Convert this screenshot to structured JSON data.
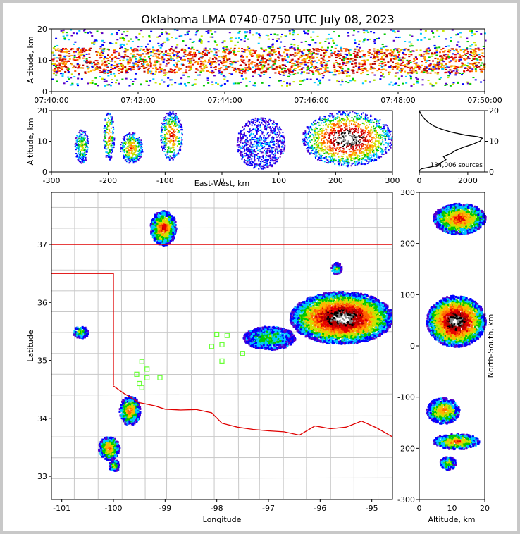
{
  "title": "Oklahoma LMA 0740-0750 UTC July 08, 2023",
  "colors": {
    "density": [
      "#5a00c8",
      "#0000ff",
      "#00c8ff",
      "#00c800",
      "#c8e600",
      "#ffb400",
      "#ff6400",
      "#e60000",
      "#b40000",
      "#000000",
      "#808080",
      "#ffffff"
    ],
    "state_border": "#e00000",
    "county_border": "#c8c8c8",
    "station": "#66ff33"
  },
  "chart_data": [
    {
      "id": "time-height",
      "type": "heatmap",
      "ylabel": "Altitude, km",
      "xlim": [
        "07:40:00",
        "07:50:00"
      ],
      "ylim": [
        0,
        20
      ],
      "xticks": [
        "07:40:00",
        "07:42:00",
        "07:44:00",
        "07:46:00",
        "07:48:00",
        "07:50:00"
      ],
      "yticks": [
        0,
        10,
        20
      ],
      "band": {
        "altitude_km": [
          2,
          20
        ],
        "core_km": [
          6,
          14
        ]
      }
    },
    {
      "id": "ew-altitude",
      "type": "heatmap",
      "xlabel": "East-West, km",
      "ylabel": "Altitude, km",
      "xlim": [
        -300,
        300
      ],
      "ylim": [
        0,
        20
      ],
      "xticks": [
        -300,
        -200,
        -100,
        0,
        100,
        200,
        300
      ],
      "yticks": [
        0,
        10,
        20
      ],
      "clusters": [
        {
          "x": [
            -260,
            -235
          ],
          "z": [
            3,
            14
          ],
          "level": 4
        },
        {
          "x": [
            -210,
            -190
          ],
          "z": [
            4,
            20
          ],
          "level": 6
        },
        {
          "x": [
            -180,
            -140
          ],
          "z": [
            3,
            13
          ],
          "level": 6
        },
        {
          "x": [
            -110,
            -70
          ],
          "z": [
            4,
            20
          ],
          "level": 7
        },
        {
          "x": [
            140,
            300
          ],
          "z": [
            2,
            20
          ],
          "level": 11
        },
        {
          "x": [
            25,
            110
          ],
          "z": [
            1,
            18
          ],
          "level": 1
        }
      ]
    },
    {
      "id": "altitude-histogram",
      "type": "line",
      "ylim": [
        0,
        20
      ],
      "xlim": [
        0,
        2700
      ],
      "xticks": [
        0,
        2000
      ],
      "yticks": [
        0,
        10,
        20
      ],
      "annotation": "134,006 sources",
      "series": [
        {
          "altitude_km": [
            0.2,
            1,
            2,
            3,
            4,
            5,
            6,
            7,
            8,
            9,
            10,
            11,
            11.5,
            12,
            13,
            14,
            15,
            16,
            17,
            18,
            19,
            20
          ],
          "count": [
            0,
            80,
            700,
            900,
            1100,
            1000,
            1300,
            1500,
            1800,
            2200,
            2500,
            2600,
            2400,
            1900,
            1300,
            900,
            600,
            400,
            250,
            150,
            60,
            0
          ]
        }
      ]
    },
    {
      "id": "plan-view",
      "type": "heatmap",
      "xlabel": "Longitude",
      "ylabel": "Latitude",
      "xlim": [
        -101.2,
        -94.6
      ],
      "ylim": [
        32.6,
        37.9
      ],
      "xticks": [
        -101,
        -100,
        -99,
        -98,
        -97,
        -96,
        -95
      ],
      "yticks": [
        33,
        34,
        35,
        36,
        37
      ],
      "clusters": [
        {
          "lon": [
            -99.3,
            -98.8
          ],
          "lat": [
            37.0,
            37.6
          ],
          "level": 7
        },
        {
          "lon": [
            -96.6,
            -94.6
          ],
          "lat": [
            35.3,
            36.2
          ],
          "level": 11
        },
        {
          "lon": [
            -97.5,
            -96.5
          ],
          "lat": [
            35.2,
            35.6
          ],
          "level": 3
        },
        {
          "lon": [
            -99.9,
            -99.5
          ],
          "lat": [
            33.9,
            34.4
          ],
          "level": 6
        },
        {
          "lon": [
            -100.3,
            -99.9
          ],
          "lat": [
            33.3,
            33.7
          ],
          "level": 6
        },
        {
          "lon": [
            -100.1,
            -99.9
          ],
          "lat": [
            33.1,
            33.3
          ],
          "level": 4
        },
        {
          "lon": [
            -100.8,
            -100.5
          ],
          "lat": [
            35.4,
            35.6
          ],
          "level": 4
        },
        {
          "lon": [
            -95.8,
            -95.6
          ],
          "lat": [
            36.5,
            36.7
          ],
          "level": 3
        }
      ],
      "stations": [
        {
          "lon": -98.0,
          "lat": 35.45
        },
        {
          "lon": -97.8,
          "lat": 35.43
        },
        {
          "lon": -97.9,
          "lat": 35.27
        },
        {
          "lon": -98.1,
          "lat": 35.24
        },
        {
          "lon": -97.9,
          "lat": 34.99
        },
        {
          "lon": -97.5,
          "lat": 35.12
        },
        {
          "lon": -99.45,
          "lat": 34.98
        },
        {
          "lon": -99.35,
          "lat": 34.85
        },
        {
          "lon": -99.55,
          "lat": 34.76
        },
        {
          "lon": -99.35,
          "lat": 34.7
        },
        {
          "lon": -99.1,
          "lat": 34.7
        },
        {
          "lon": -99.5,
          "lat": 34.6
        },
        {
          "lon": -99.45,
          "lat": 34.53
        }
      ]
    },
    {
      "id": "ns-altitude",
      "type": "heatmap",
      "xlabel": "Altitude, km",
      "ylabel": "North-South, km",
      "xlim": [
        0,
        20
      ],
      "ylim": [
        -300,
        300
      ],
      "xticks": [
        0,
        10,
        20
      ],
      "yticks": [
        -300,
        -200,
        -100,
        0,
        100,
        200,
        300
      ],
      "clusters": [
        {
          "z": [
            4,
            20
          ],
          "y": [
            220,
            280
          ],
          "level": 7
        },
        {
          "z": [
            2,
            20
          ],
          "y": [
            0,
            100
          ],
          "level": 11
        },
        {
          "z": [
            2,
            12
          ],
          "y": [
            -150,
            -100
          ],
          "level": 6
        },
        {
          "z": [
            4,
            18
          ],
          "y": [
            -200,
            -170
          ],
          "level": 6
        },
        {
          "z": [
            6,
            11
          ],
          "y": [
            -240,
            -215
          ],
          "level": 4
        }
      ]
    }
  ]
}
